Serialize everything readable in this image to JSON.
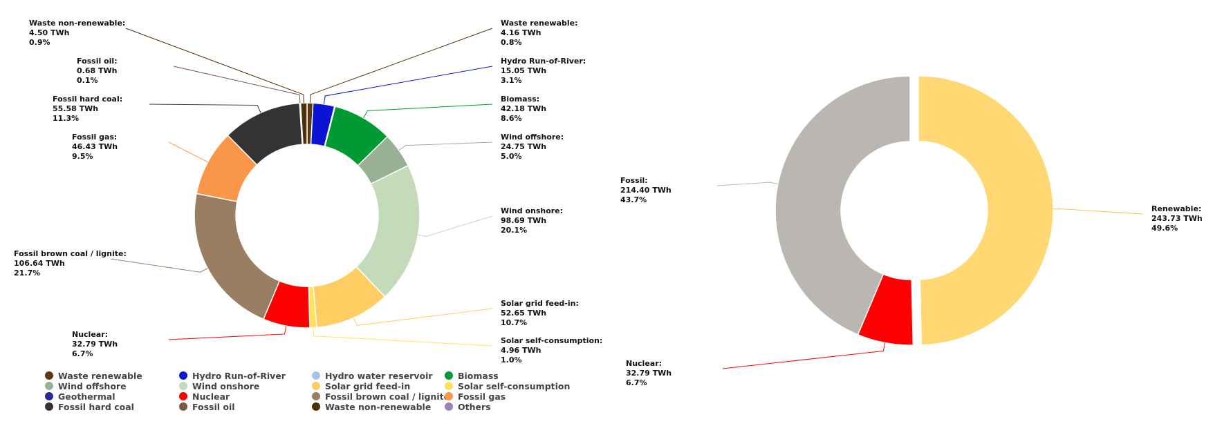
{
  "chart_data": [
    {
      "type": "pie",
      "donut": true,
      "slices": [
        {
          "name": "Waste renewable",
          "value": 4.16,
          "unit": "TWh",
          "percent": "0.8%",
          "color": "#5a3a10"
        },
        {
          "name": "Hydro Run-of-River",
          "value": 15.05,
          "unit": "TWh",
          "percent": "3.1%",
          "color": "#0a14d2"
        },
        {
          "name": "Hydro water reservoir",
          "value": 0.5,
          "unit": "TWh",
          "percent": "",
          "color": "#a8c4ee"
        },
        {
          "name": "Biomass",
          "value": 42.18,
          "unit": "TWh",
          "percent": "8.6%",
          "color": "#009933"
        },
        {
          "name": "Wind offshore",
          "value": 24.75,
          "unit": "TWh",
          "percent": "5.0%",
          "color": "#98b094"
        },
        {
          "name": "Wind onshore",
          "value": 98.69,
          "unit": "TWh",
          "percent": "20.1%",
          "color": "#c3dabb"
        },
        {
          "name": "Solar grid feed-in",
          "value": 52.65,
          "unit": "TWh",
          "percent": "10.7%",
          "color": "#ffcd62"
        },
        {
          "name": "Solar self-consumption",
          "value": 4.96,
          "unit": "TWh",
          "percent": "1.0%",
          "color": "#ffe25c"
        },
        {
          "name": "Nuclear",
          "value": 32.79,
          "unit": "TWh",
          "percent": "6.7%",
          "color": "#ff0000"
        },
        {
          "name": "Fossil brown coal / lignite",
          "value": 106.64,
          "unit": "TWh",
          "percent": "21.7%",
          "color": "#997e62"
        },
        {
          "name": "Fossil gas",
          "value": 46.43,
          "unit": "TWh",
          "percent": "9.5%",
          "color": "#f9964a"
        },
        {
          "name": "Fossil hard coal",
          "value": 55.58,
          "unit": "TWh",
          "percent": "11.3%",
          "color": "#333333"
        },
        {
          "name": "Fossil oil",
          "value": 0.68,
          "unit": "TWh",
          "percent": "0.1%",
          "color": "#7a5a44"
        },
        {
          "name": "Waste non-renewable",
          "value": 4.5,
          "unit": "TWh",
          "percent": "0.9%",
          "color": "#4f2f08"
        }
      ],
      "labeled": [
        "Waste renewable",
        "Hydro Run-of-River",
        "Biomass",
        "Wind offshore",
        "Wind onshore",
        "Solar grid feed-in",
        "Solar self-consumption",
        "Nuclear",
        "Fossil brown coal / lignite",
        "Fossil gas",
        "Fossil hard coal",
        "Fossil oil",
        "Waste non-renewable"
      ],
      "legend": {
        "placement": "bottom",
        "items": [
          {
            "name": "Waste renewable",
            "color": "#5a3a10"
          },
          {
            "name": "Hydro Run-of-River",
            "color": "#0a14d2"
          },
          {
            "name": "Hydro water reservoir",
            "color": "#a8c4ee"
          },
          {
            "name": "Biomass",
            "color": "#009933"
          },
          {
            "name": "Wind offshore",
            "color": "#98b094"
          },
          {
            "name": "Wind onshore",
            "color": "#c3dabb"
          },
          {
            "name": "Solar grid feed-in",
            "color": "#ffcd62"
          },
          {
            "name": "Solar self-consumption",
            "color": "#ffe25c"
          },
          {
            "name": "Geothermal",
            "color": "#2a2a94"
          },
          {
            "name": "Nuclear",
            "color": "#ff0000"
          },
          {
            "name": "Fossil brown coal / lignite",
            "color": "#997e62"
          },
          {
            "name": "Fossil gas",
            "color": "#f9964a"
          },
          {
            "name": "Fossil hard coal",
            "color": "#333333"
          },
          {
            "name": "Fossil oil",
            "color": "#7a5a44"
          },
          {
            "name": "Waste non-renewable",
            "color": "#4f2f08"
          },
          {
            "name": "Others",
            "color": "#9b83b3"
          }
        ]
      }
    },
    {
      "type": "pie",
      "donut": true,
      "slices": [
        {
          "name": "Renewable",
          "value": 243.73,
          "unit": "TWh",
          "percent": "49.6%",
          "color": "#ffd873"
        },
        {
          "name": "Nuclear",
          "value": 32.79,
          "unit": "TWh",
          "percent": "6.7%",
          "color": "#ff0000"
        },
        {
          "name": "Fossil",
          "value": 214.4,
          "unit": "TWh",
          "percent": "43.7%",
          "color": "#bab6b2"
        }
      ],
      "labeled": [
        "Renewable",
        "Nuclear",
        "Fossil"
      ]
    }
  ]
}
